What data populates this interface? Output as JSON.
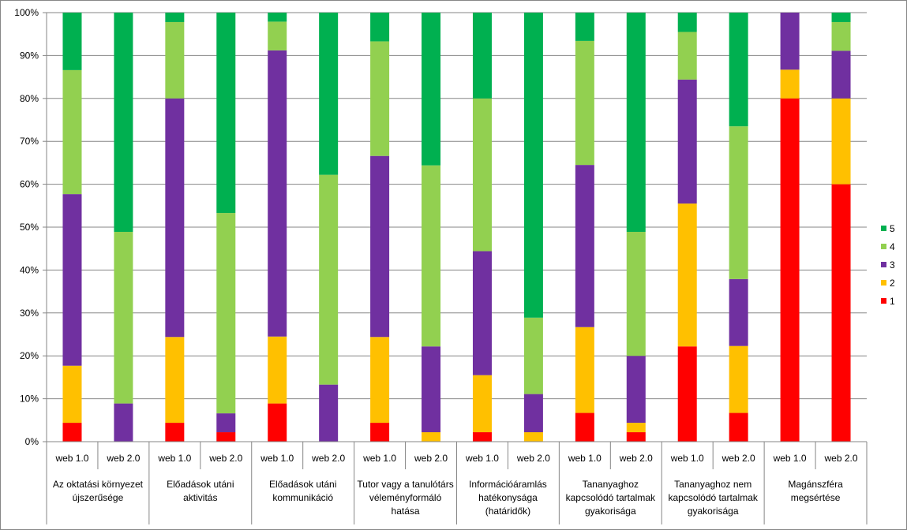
{
  "chart_data": {
    "type": "bar",
    "stacked": "percent",
    "title": "",
    "xlabel": "",
    "ylabel": "",
    "ylim": [
      0,
      100
    ],
    "yticks": [
      "0%",
      "10%",
      "20%",
      "30%",
      "40%",
      "50%",
      "60%",
      "70%",
      "80%",
      "90%",
      "100%"
    ],
    "grid": true,
    "legend_position": "right",
    "groups": [
      {
        "label": [
          "Az oktatási környezet",
          "újszerűsége"
        ]
      },
      {
        "label": [
          "Előadások utáni",
          "aktivitás"
        ]
      },
      {
        "label": [
          "Előadások utáni",
          "kommunikáció"
        ]
      },
      {
        "label": [
          "Tutor vagy a tanulótárs",
          "véleményformáló",
          "hatása"
        ]
      },
      {
        "label": [
          "Információáramlás",
          "hatékonysága",
          "(határidők)"
        ]
      },
      {
        "label": [
          "Tananyaghoz",
          "kapcsolódó tartalmak",
          "gyakorisága"
        ]
      },
      {
        "label": [
          "Tananyaghoz nem",
          "kapcsolódó tartalmak",
          "gyakorisága"
        ]
      },
      {
        "label": [
          "Magánszféra",
          "megsértése"
        ]
      }
    ],
    "categories": [
      "web 1.0",
      "web 2.0",
      "web 1.0",
      "web 2.0",
      "web 1.0",
      "web 2.0",
      "web 1.0",
      "web 2.0",
      "web 1.0",
      "web 2.0",
      "web 1.0",
      "web 2.0",
      "web 1.0",
      "web 2.0",
      "web 1.0",
      "web 2.0"
    ],
    "series": [
      {
        "name": "1",
        "color": "#FF0000",
        "values": [
          4.4,
          0,
          4.4,
          2.2,
          8.9,
          0,
          4.4,
          0,
          2.2,
          0,
          6.7,
          2.2,
          22.2,
          6.7,
          80,
          60
        ]
      },
      {
        "name": "2",
        "color": "#FFC000",
        "values": [
          13.3,
          0,
          20,
          0,
          15.6,
          0,
          20,
          2.2,
          13.3,
          2.2,
          20,
          2.2,
          33.3,
          15.6,
          6.7,
          20
        ]
      },
      {
        "name": "3",
        "color": "#7030A0",
        "values": [
          40,
          8.9,
          55.6,
          4.4,
          66.7,
          13.3,
          42.2,
          20,
          28.9,
          8.9,
          37.8,
          15.6,
          28.9,
          15.6,
          13.3,
          11.1
        ]
      },
      {
        "name": "4",
        "color": "#92D050",
        "values": [
          28.9,
          40,
          17.8,
          46.7,
          6.7,
          48.9,
          26.7,
          42.2,
          35.6,
          17.8,
          28.9,
          28.9,
          11.1,
          35.6,
          0,
          6.7
        ]
      },
      {
        "name": "5",
        "color": "#00B050",
        "values": [
          13.4,
          51.1,
          2.2,
          46.7,
          2.1,
          37.8,
          6.7,
          35.6,
          20,
          71.1,
          6.6,
          51.1,
          4.5,
          26.5,
          0,
          2.2
        ]
      }
    ]
  }
}
